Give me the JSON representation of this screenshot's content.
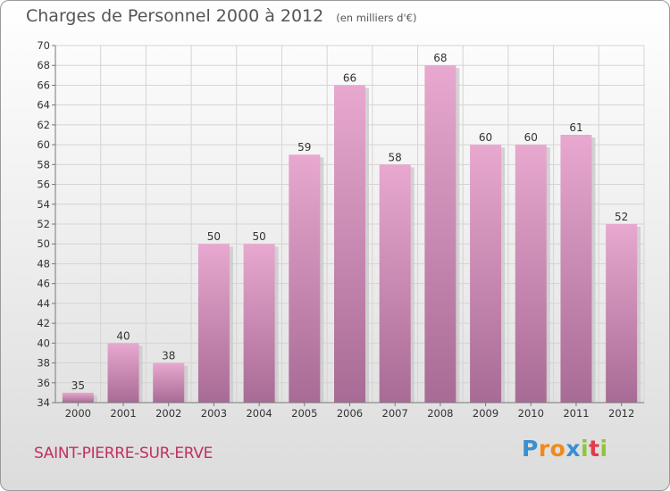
{
  "header": {
    "title": "Charges de Personnel 2000 à 2012",
    "subtitle": "(en milliers d'€)"
  },
  "footer": {
    "town": "SAINT-PIERRE-SUR-ERVE",
    "logo": "Proxiti"
  },
  "colors": {
    "bar_top": "#e8a8cf",
    "bar_bottom": "#a86b95",
    "bar_shadow": "#c9c9c9",
    "grid": "#d4d4d4",
    "axis": "#777777",
    "label": "#333333",
    "town": "#c0305e"
  },
  "chart_data": {
    "type": "bar",
    "title": "Charges de Personnel 2000 à 2012",
    "subtitle": "(en milliers d'€)",
    "xlabel": "",
    "ylabel": "",
    "categories": [
      "2000",
      "2001",
      "2002",
      "2003",
      "2004",
      "2005",
      "2006",
      "2007",
      "2008",
      "2009",
      "2010",
      "2011",
      "2012"
    ],
    "values": [
      35,
      40,
      38,
      50,
      50,
      59,
      66,
      58,
      68,
      60,
      60,
      61,
      52
    ],
    "data_labels": [
      "35",
      "40",
      "38",
      "50",
      "50",
      "59",
      "66",
      "58",
      "68",
      "60",
      "60",
      "61",
      "52"
    ],
    "ylim": [
      34,
      70
    ],
    "yticks": [
      34,
      36,
      38,
      40,
      42,
      44,
      46,
      48,
      50,
      52,
      54,
      56,
      58,
      60,
      62,
      64,
      66,
      68,
      70
    ],
    "grid": true,
    "legend": "none"
  }
}
